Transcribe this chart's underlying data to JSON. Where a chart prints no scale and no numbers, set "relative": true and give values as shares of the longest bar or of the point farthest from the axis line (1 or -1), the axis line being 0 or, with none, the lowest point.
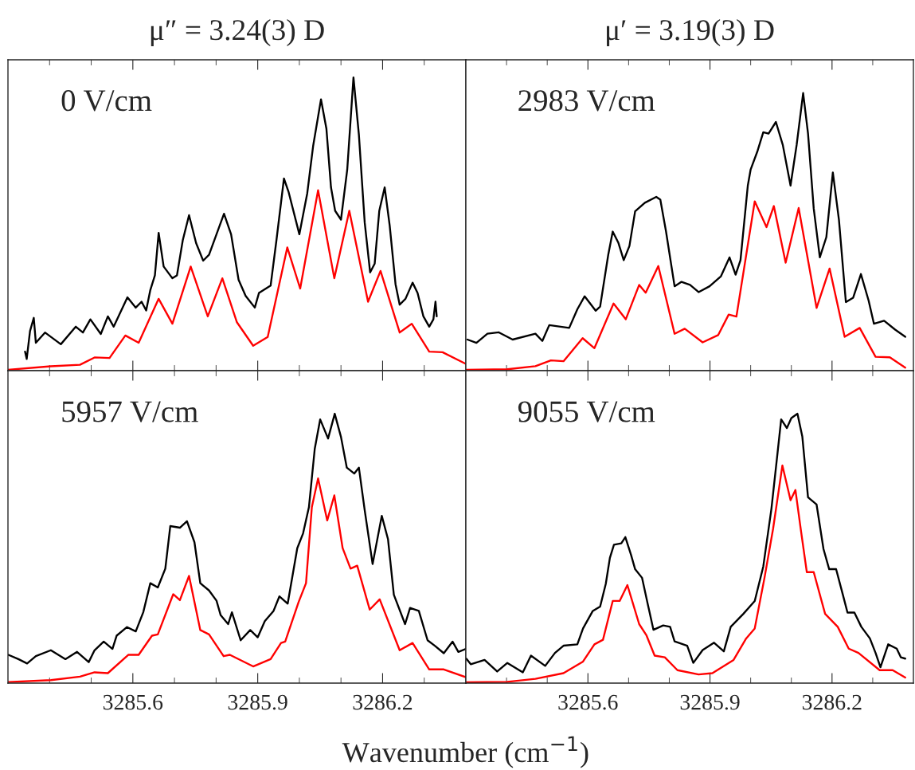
{
  "chart_data": [
    {
      "type": "line",
      "title": "μ″ = 3.24(3) D",
      "annotations": [
        "0 V/cm"
      ],
      "relative": true,
      "xlim": [
        3285.3,
        3286.4
      ],
      "xticks": [
        {
          "value": 3285.4,
          "label": null
        },
        {
          "value": 3285.5,
          "label": null
        },
        3285.6,
        {
          "value": 3285.7,
          "label": null
        },
        {
          "value": 3285.8,
          "label": null
        },
        3285.9,
        {
          "value": 3286.0,
          "label": null
        },
        {
          "value": 3286.1,
          "label": null
        },
        3286.2,
        {
          "value": 3286.3,
          "label": null
        }
      ],
      "tick_labels": false,
      "series": [
        {
          "color": "#000000",
          "x": [
            3285.341,
            3285.345,
            3285.353,
            3285.362,
            3285.367,
            3285.389,
            3285.427,
            3285.463,
            3285.48,
            3285.498,
            3285.523,
            3285.54,
            3285.554,
            3285.587,
            3285.607,
            3285.621,
            3285.632,
            3285.642,
            3285.653,
            3285.662,
            3285.674,
            3285.695,
            3285.706,
            3285.72,
            3285.735,
            3285.752,
            3285.769,
            3285.783,
            3285.801,
            3285.819,
            3285.836,
            3285.854,
            3285.871,
            3285.893,
            3285.903,
            3285.931,
            3285.945,
            3285.963,
            3285.974,
            3286.0,
            3286.019,
            3286.033,
            3286.052,
            3286.065,
            3286.076,
            3286.086,
            3286.1,
            3286.115,
            3286.13,
            3286.143,
            3286.157,
            3286.17,
            3286.181,
            3286.192,
            3286.205,
            3286.217,
            3286.231,
            3286.241,
            3286.255,
            3286.272,
            3286.284,
            3286.298,
            3286.312,
            3286.322,
            3286.327,
            3286.33
          ],
          "values": [
            0.065,
            0.04,
            0.135,
            0.18,
            0.095,
            0.13,
            0.09,
            0.15,
            0.13,
            0.175,
            0.125,
            0.185,
            0.15,
            0.25,
            0.215,
            0.235,
            0.205,
            0.275,
            0.325,
            0.47,
            0.355,
            0.315,
            0.325,
            0.445,
            0.53,
            0.435,
            0.375,
            0.395,
            0.465,
            0.535,
            0.465,
            0.31,
            0.255,
            0.215,
            0.265,
            0.29,
            0.445,
            0.655,
            0.61,
            0.465,
            0.605,
            0.765,
            0.925,
            0.825,
            0.625,
            0.545,
            0.515,
            0.685,
            1.0,
            0.805,
            0.505,
            0.335,
            0.365,
            0.545,
            0.625,
            0.495,
            0.295,
            0.225,
            0.245,
            0.3,
            0.265,
            0.185,
            0.15,
            0.175,
            0.235,
            0.185
          ]
        },
        {
          "color": "#ff0000",
          "x": [
            3285.3,
            3285.403,
            3285.473,
            3285.508,
            3285.544,
            3285.582,
            3285.614,
            3285.662,
            3285.695,
            3285.739,
            3285.78,
            3285.815,
            3285.85,
            3285.889,
            3285.924,
            3285.971,
            3286.002,
            3286.045,
            3286.084,
            3286.12,
            3286.165,
            3286.195,
            3286.241,
            3286.27,
            3286.312,
            3286.344,
            3286.4
          ],
          "values": [
            0.003,
            0.015,
            0.02,
            0.045,
            0.043,
            0.12,
            0.095,
            0.245,
            0.16,
            0.355,
            0.185,
            0.315,
            0.165,
            0.085,
            0.115,
            0.42,
            0.28,
            0.615,
            0.315,
            0.545,
            0.235,
            0.34,
            0.13,
            0.16,
            0.065,
            0.063,
            0.023
          ]
        }
      ]
    },
    {
      "type": "line",
      "title": "μ′ = 3.19(3) D",
      "annotations": [
        "2983 V/cm"
      ],
      "relative": true,
      "xlim": [
        3285.3,
        3286.4
      ],
      "xticks": [
        {
          "value": 3285.4,
          "label": null
        },
        {
          "value": 3285.5,
          "label": null
        },
        3285.6,
        {
          "value": 3285.7,
          "label": null
        },
        {
          "value": 3285.8,
          "label": null
        },
        3285.9,
        {
          "value": 3286.0,
          "label": null
        },
        {
          "value": 3286.1,
          "label": null
        },
        3286.2,
        {
          "value": 3286.3,
          "label": null
        }
      ],
      "tick_labels": false,
      "series": [
        {
          "color": "#000000",
          "x": [
            3285.304,
            3285.326,
            3285.353,
            3285.381,
            3285.415,
            3285.471,
            3285.488,
            3285.505,
            3285.554,
            3285.574,
            3285.592,
            3285.619,
            3285.63,
            3285.65,
            3285.661,
            3285.675,
            3285.688,
            3285.702,
            3285.716,
            3285.74,
            3285.768,
            3285.778,
            3285.792,
            3285.813,
            3285.83,
            3285.851,
            3285.872,
            3285.899,
            3285.927,
            3285.948,
            3285.963,
            3285.975,
            3285.993,
            3286.0,
            3286.017,
            3286.031,
            3286.044,
            3286.062,
            3286.079,
            3286.098,
            3286.113,
            3286.129,
            3286.141,
            3286.155,
            3286.17,
            3286.186,
            3286.202,
            3286.217,
            3286.234,
            3286.252,
            3286.271,
            3286.29,
            3286.303,
            3286.328,
            3286.355,
            3286.38
          ],
          "values": [
            0.112,
            0.1,
            0.133,
            0.138,
            0.112,
            0.133,
            0.107,
            0.164,
            0.154,
            0.221,
            0.268,
            0.216,
            0.231,
            0.418,
            0.501,
            0.46,
            0.398,
            0.449,
            0.574,
            0.605,
            0.626,
            0.616,
            0.501,
            0.304,
            0.32,
            0.309,
            0.283,
            0.304,
            0.34,
            0.408,
            0.346,
            0.398,
            0.667,
            0.725,
            0.792,
            0.859,
            0.854,
            0.896,
            0.813,
            0.667,
            0.813,
            1.0,
            0.854,
            0.584,
            0.408,
            0.481,
            0.714,
            0.543,
            0.247,
            0.263,
            0.348,
            0.252,
            0.169,
            0.18,
            0.148,
            0.122
          ]
        },
        {
          "color": "#ff0000",
          "x": [
            3285.301,
            3285.402,
            3285.471,
            3285.509,
            3285.54,
            3285.587,
            3285.616,
            3285.663,
            3285.693,
            3285.726,
            3285.742,
            3285.773,
            3285.813,
            3285.838,
            3285.882,
            3285.92,
            3285.946,
            3285.965,
            3286.01,
            3286.039,
            3286.057,
            3286.086,
            3286.118,
            3286.162,
            3286.194,
            3286.231,
            3286.268,
            3286.307,
            3286.342,
            3286.38
          ],
          "values": [
            0.003,
            0.005,
            0.016,
            0.037,
            0.034,
            0.117,
            0.081,
            0.242,
            0.185,
            0.309,
            0.281,
            0.377,
            0.133,
            0.151,
            0.102,
            0.128,
            0.202,
            0.195,
            0.61,
            0.517,
            0.593,
            0.389,
            0.586,
            0.226,
            0.368,
            0.122,
            0.154,
            0.05,
            0.048,
            0.011
          ]
        }
      ]
    },
    {
      "type": "line",
      "annotations": [
        "5957 V/cm"
      ],
      "relative": true,
      "xlim": [
        3285.3,
        3286.4
      ],
      "xlabel": "Wavenumber (cm$^{−1}$)",
      "xticks": [
        {
          "value": 3285.4,
          "label": null
        },
        {
          "value": 3285.5,
          "label": null
        },
        3285.6,
        {
          "value": 3285.7,
          "label": null
        },
        {
          "value": 3285.8,
          "label": null
        },
        3285.9,
        {
          "value": 3286.0,
          "label": null
        },
        {
          "value": 3286.1,
          "label": null
        },
        3286.2,
        {
          "value": 3286.3,
          "label": null
        }
      ],
      "tick_labels": "x",
      "series": [
        {
          "color": "#000000",
          "x": [
            3285.301,
            3285.325,
            3285.346,
            3285.367,
            3285.403,
            3285.438,
            3285.466,
            3285.494,
            3285.508,
            3285.53,
            3285.551,
            3285.561,
            3285.586,
            3285.607,
            3285.625,
            3285.642,
            3285.66,
            3285.678,
            3285.69,
            3285.713,
            3285.73,
            3285.748,
            3285.762,
            3285.783,
            3285.801,
            3285.811,
            3285.829,
            3285.838,
            3285.859,
            3285.882,
            3285.9,
            3285.917,
            3285.938,
            3285.952,
            3285.972,
            3285.995,
            3286.009,
            3286.023,
            3286.037,
            3286.05,
            3286.069,
            3286.085,
            3286.1,
            3286.114,
            3286.132,
            3286.143,
            3286.157,
            3286.176,
            3286.198,
            3286.213,
            3286.227,
            3286.254,
            3286.266,
            3286.287,
            3286.308,
            3286.326,
            3286.347,
            3286.368,
            3286.382,
            3286.4
          ],
          "values": [
            0.105,
            0.089,
            0.073,
            0.1,
            0.122,
            0.089,
            0.116,
            0.078,
            0.122,
            0.154,
            0.127,
            0.176,
            0.208,
            0.192,
            0.263,
            0.371,
            0.355,
            0.425,
            0.583,
            0.577,
            0.601,
            0.523,
            0.371,
            0.344,
            0.306,
            0.252,
            0.219,
            0.263,
            0.159,
            0.197,
            0.17,
            0.23,
            0.268,
            0.322,
            0.295,
            0.501,
            0.556,
            0.653,
            0.87,
            0.979,
            0.908,
            1.0,
            0.914,
            0.8,
            0.778,
            0.8,
            0.642,
            0.442,
            0.621,
            0.534,
            0.328,
            0.219,
            0.279,
            0.268,
            0.159,
            0.138,
            0.111,
            0.154,
            0.116,
            0.127
          ]
        },
        {
          "color": "#ff0000",
          "x": [
            3285.301,
            3285.403,
            3285.473,
            3285.508,
            3285.54,
            3285.589,
            3285.614,
            3285.646,
            3285.66,
            3285.697,
            3285.713,
            3285.735,
            3285.762,
            3285.783,
            3285.818,
            3285.833,
            3285.889,
            3285.931,
            3285.956,
            3285.966,
            3285.998,
            3286.016,
            3286.03,
            3286.045,
            3286.067,
            3286.084,
            3286.104,
            3286.123,
            3286.139,
            3286.169,
            3286.193,
            3286.241,
            3286.272,
            3286.312,
            3286.347,
            3286.4
          ],
          "values": [
            0.004,
            0.011,
            0.024,
            0.04,
            0.037,
            0.105,
            0.105,
            0.176,
            0.181,
            0.33,
            0.308,
            0.398,
            0.197,
            0.181,
            0.1,
            0.105,
            0.062,
            0.089,
            0.149,
            0.154,
            0.3,
            0.371,
            0.653,
            0.76,
            0.604,
            0.697,
            0.501,
            0.425,
            0.436,
            0.273,
            0.311,
            0.122,
            0.149,
            0.051,
            0.051,
            0.022
          ]
        }
      ]
    },
    {
      "type": "line",
      "annotations": [
        "9055 V/cm"
      ],
      "relative": true,
      "xlim": [
        3285.3,
        3286.4
      ],
      "xticks": [
        {
          "value": 3285.4,
          "label": null
        },
        {
          "value": 3285.5,
          "label": null
        },
        3285.6,
        {
          "value": 3285.7,
          "label": null
        },
        {
          "value": 3285.8,
          "label": null
        },
        3285.9,
        {
          "value": 3286.0,
          "label": null
        },
        {
          "value": 3286.1,
          "label": null
        },
        3286.2,
        {
          "value": 3286.3,
          "label": null
        }
      ],
      "tick_labels": "x",
      "series": [
        {
          "color": "#000000",
          "x": [
            3285.301,
            3285.312,
            3285.346,
            3285.377,
            3285.402,
            3285.44,
            3285.46,
            3285.495,
            3285.519,
            3285.54,
            3285.574,
            3285.588,
            3285.612,
            3285.63,
            3285.644,
            3285.654,
            3285.664,
            3285.682,
            3285.692,
            3285.706,
            3285.716,
            3285.733,
            3285.747,
            3285.761,
            3285.785,
            3285.802,
            3285.813,
            3285.844,
            3285.859,
            3285.882,
            3285.91,
            3285.934,
            3285.951,
            3285.982,
            3286.01,
            3286.031,
            3286.051,
            3286.065,
            3286.075,
            3286.089,
            3286.1,
            3286.115,
            3286.127,
            3286.141,
            3286.162,
            3286.179,
            3286.193,
            3286.21,
            3286.227,
            3286.238,
            3286.255,
            3286.272,
            3286.293,
            3286.307,
            3286.319,
            3286.338,
            3286.359,
            3286.369,
            3286.38
          ],
          "values": [
            0.091,
            0.07,
            0.086,
            0.043,
            0.075,
            0.04,
            0.102,
            0.064,
            0.112,
            0.139,
            0.144,
            0.203,
            0.268,
            0.284,
            0.369,
            0.465,
            0.514,
            0.519,
            0.542,
            0.476,
            0.423,
            0.391,
            0.294,
            0.198,
            0.214,
            0.209,
            0.155,
            0.139,
            0.075,
            0.123,
            0.15,
            0.118,
            0.209,
            0.257,
            0.305,
            0.433,
            0.647,
            0.84,
            0.979,
            0.947,
            0.984,
            1.0,
            0.915,
            0.69,
            0.663,
            0.498,
            0.423,
            0.423,
            0.326,
            0.262,
            0.262,
            0.209,
            0.166,
            0.112,
            0.059,
            0.144,
            0.128,
            0.096,
            0.091
          ]
        },
        {
          "color": "#ff0000",
          "x": [
            3285.301,
            3285.402,
            3285.471,
            3285.54,
            3285.588,
            3285.616,
            3285.637,
            3285.661,
            3285.678,
            3285.697,
            3285.726,
            3285.744,
            3285.764,
            3285.789,
            3285.82,
            3285.872,
            3285.906,
            3285.958,
            3285.989,
            3286.01,
            3286.034,
            3286.055,
            3286.078,
            3286.098,
            3286.11,
            3286.124,
            3286.138,
            3286.155,
            3286.183,
            3286.214,
            3286.241,
            3286.265,
            3286.317,
            3286.349,
            3286.38
          ],
          "values": [
            0.003,
            0.005,
            0.016,
            0.037,
            0.08,
            0.144,
            0.161,
            0.305,
            0.305,
            0.364,
            0.219,
            0.177,
            0.102,
            0.096,
            0.048,
            0.032,
            0.037,
            0.086,
            0.166,
            0.203,
            0.391,
            0.572,
            0.808,
            0.679,
            0.717,
            0.562,
            0.412,
            0.412,
            0.257,
            0.209,
            0.128,
            0.112,
            0.048,
            0.048,
            0.021
          ]
        }
      ]
    }
  ]
}
